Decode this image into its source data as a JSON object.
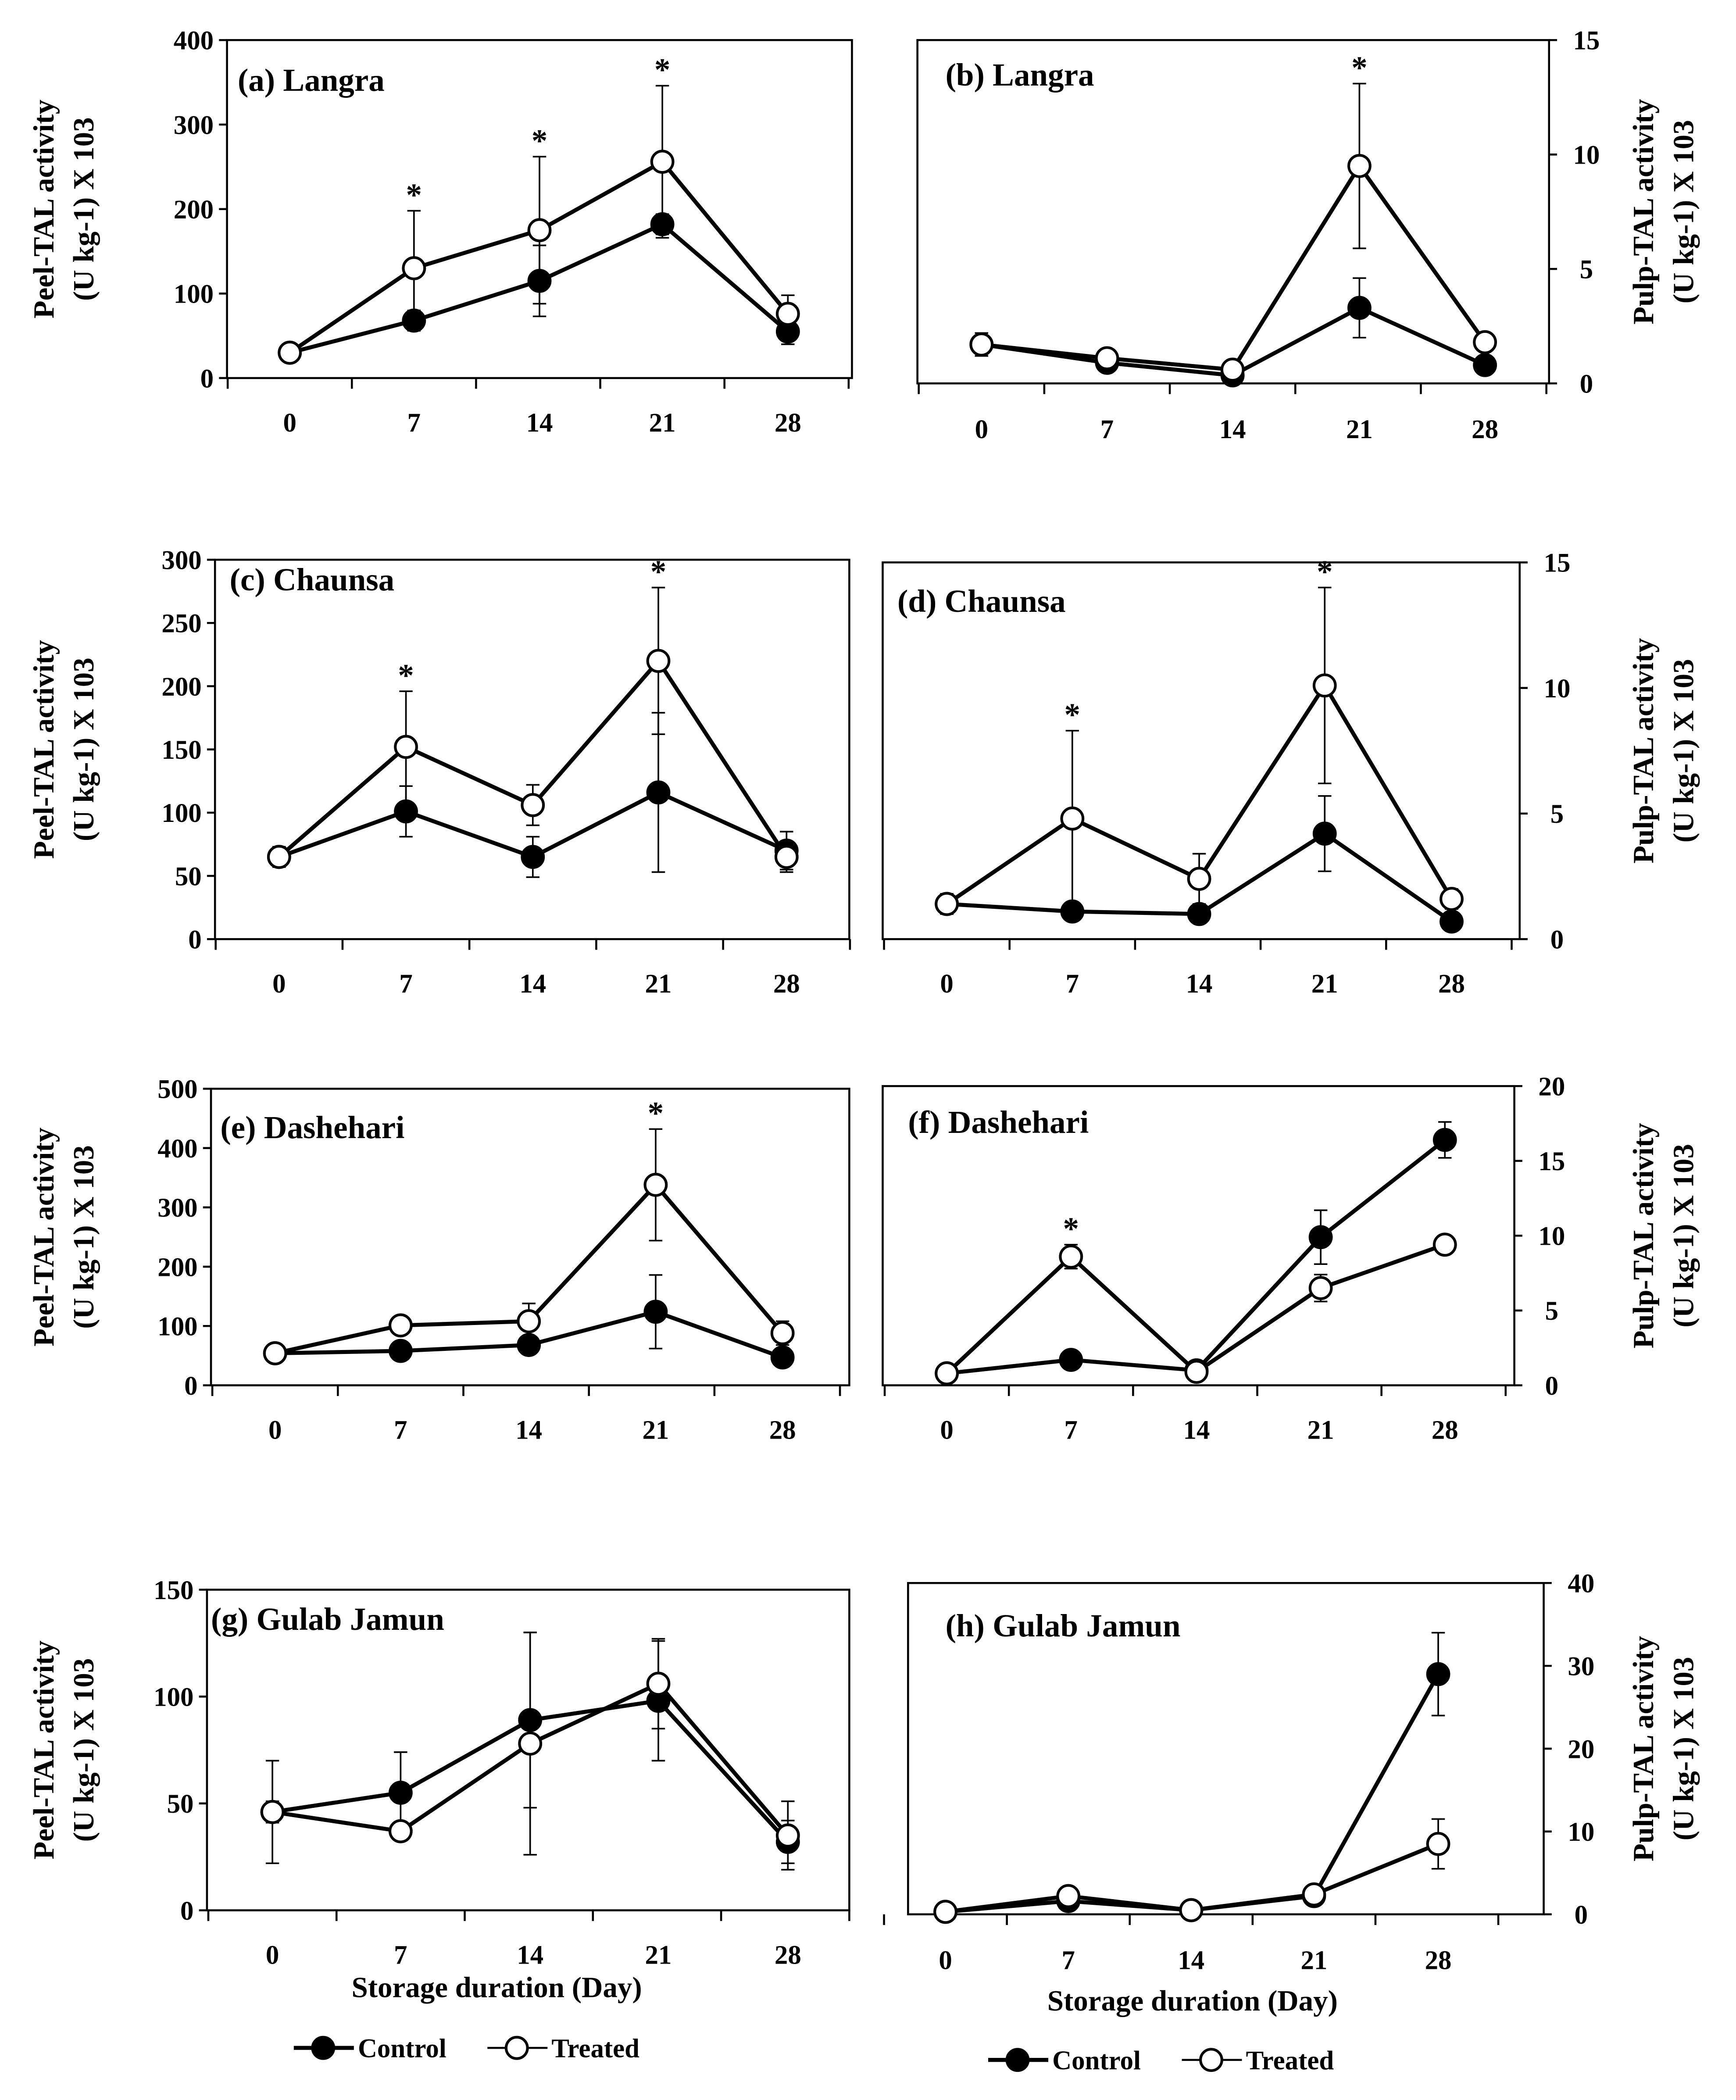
{
  "chart_data": [
    {
      "type": "line",
      "panel": "a",
      "title": "(a) Langra",
      "ylabel": "Peel-TAL activity",
      "ylabel2": "(U kg-1) X 103",
      "ylim": [
        0,
        400
      ],
      "yticks": [
        0,
        100,
        200,
        300,
        400
      ],
      "x": [
        0,
        7,
        14,
        21,
        28
      ],
      "xlabel": "",
      "series": [
        {
          "name": "Control",
          "values": [
            30,
            68,
            115,
            182,
            55
          ],
          "errors": [
            5,
            12,
            42,
            12,
            15
          ]
        },
        {
          "name": "Treated",
          "values": [
            30,
            130,
            175,
            256,
            76
          ],
          "errors": [
            5,
            68,
            87,
            90,
            22
          ]
        }
      ],
      "significant_days": [
        7,
        14,
        21
      ]
    },
    {
      "type": "line",
      "panel": "b",
      "title": "(b) Langra",
      "ylabel": "Pulp-TAL activity",
      "ylabel2": "(U kg-1) X 103",
      "ylim": [
        0,
        15
      ],
      "yticks": [
        0,
        5,
        10,
        15
      ],
      "x": [
        0,
        7,
        14,
        21,
        28
      ],
      "xlabel": "",
      "series": [
        {
          "name": "Control",
          "values": [
            1.7,
            0.9,
            0.35,
            3.3,
            0.8
          ],
          "errors": [
            0.3,
            0.2,
            0.1,
            1.3,
            0.2
          ]
        },
        {
          "name": "Treated",
          "values": [
            1.7,
            1.1,
            0.6,
            9.5,
            1.8
          ],
          "errors": [
            0.5,
            0.2,
            0.2,
            3.6,
            0.4
          ]
        }
      ],
      "significant_days": [
        21
      ]
    },
    {
      "type": "line",
      "panel": "c",
      "title": "(c) Chaunsa",
      "ylabel": "Peel-TAL activity",
      "ylabel2": "(U kg-1) X 103",
      "ylim": [
        0,
        300
      ],
      "yticks": [
        0,
        50,
        100,
        150,
        200,
        250,
        300
      ],
      "x": [
        0,
        7,
        14,
        21,
        28
      ],
      "xlabel": "",
      "series": [
        {
          "name": "Control",
          "values": [
            65,
            101,
            65,
            116,
            70
          ],
          "errors": [
            8,
            20,
            16,
            63,
            15
          ]
        },
        {
          "name": "Treated",
          "values": [
            65,
            152,
            106,
            220,
            65
          ],
          "errors": [
            8,
            44,
            16,
            58,
            12
          ]
        }
      ],
      "significant_days": [
        7,
        21
      ]
    },
    {
      "type": "line",
      "panel": "d",
      "title": "(d) Chaunsa",
      "ylabel": "Pulp-TAL activity",
      "ylabel2": "(U kg-1) X 103",
      "ylim": [
        0,
        15
      ],
      "yticks": [
        0,
        5,
        10,
        15
      ],
      "x": [
        0,
        7,
        14,
        21,
        28
      ],
      "xlabel": "",
      "series": [
        {
          "name": "Control",
          "values": [
            1.4,
            1.1,
            1.0,
            4.2,
            0.7
          ],
          "errors": [
            0.4,
            0.2,
            0.3,
            1.5,
            0.2
          ]
        },
        {
          "name": "Treated",
          "values": [
            1.4,
            4.8,
            2.4,
            10.1,
            1.6
          ],
          "errors": [
            0.4,
            3.5,
            1.0,
            3.9,
            0.4
          ]
        }
      ],
      "significant_days": [
        7,
        21
      ]
    },
    {
      "type": "line",
      "panel": "e",
      "title": "(e) Dashehari",
      "ylabel": "Peel-TAL activity",
      "ylabel2": "(U kg-1) X 103",
      "ylim": [
        0,
        500
      ],
      "yticks": [
        0,
        100,
        200,
        300,
        400,
        500
      ],
      "x": [
        0,
        7,
        14,
        21,
        28
      ],
      "xlabel": "",
      "series": [
        {
          "name": "Control",
          "values": [
            54,
            58,
            68,
            124,
            47
          ],
          "errors": [
            5,
            15,
            15,
            62,
            12
          ]
        },
        {
          "name": "Treated",
          "values": [
            54,
            101,
            108,
            338,
            88
          ],
          "errors": [
            5,
            10,
            30,
            94,
            20
          ]
        }
      ],
      "significant_days": [
        21
      ]
    },
    {
      "type": "line",
      "panel": "f",
      "title": "(f) Dashehari",
      "ylabel": "Pulp-TAL activity",
      "ylabel2": "(U kg-1) X 103",
      "ylim": [
        0,
        20
      ],
      "yticks": [
        0,
        5,
        10,
        15,
        20
      ],
      "x": [
        0,
        7,
        14,
        21,
        28
      ],
      "xlabel": "",
      "series": [
        {
          "name": "Control",
          "values": [
            0.8,
            1.7,
            1.0,
            9.9,
            16.4
          ],
          "errors": [
            0.2,
            0.4,
            0.3,
            1.8,
            1.2
          ]
        },
        {
          "name": "Treated",
          "values": [
            0.8,
            8.6,
            0.9,
            6.5,
            9.4
          ],
          "errors": [
            0.2,
            0.8,
            0.2,
            0.9,
            0.3
          ]
        }
      ],
      "significant_days": [
        7
      ]
    },
    {
      "type": "line",
      "panel": "g",
      "title": "(g) Gulab Jamun",
      "ylabel": "Peel-TAL activity",
      "ylabel2": "(U kg-1) X 103",
      "ylim": [
        0,
        150
      ],
      "yticks": [
        0,
        50,
        100,
        150
      ],
      "x": [
        0,
        7,
        14,
        21,
        28
      ],
      "xlabel": "Storage duration (Day)",
      "series": [
        {
          "name": "Control",
          "values": [
            46,
            55,
            89,
            98,
            32
          ],
          "errors": [
            5,
            19,
            41,
            28,
            10
          ]
        },
        {
          "name": "Treated",
          "values": [
            46,
            37,
            78,
            106,
            35
          ],
          "errors": [
            24,
            4,
            52,
            21,
            16
          ]
        }
      ],
      "significant_days": []
    },
    {
      "type": "line",
      "panel": "h",
      "title": "(h) Gulab Jamun",
      "ylabel": "Pulp-TAL activity",
      "ylabel2": "(U kg-1) X 103",
      "ylim": [
        0,
        40
      ],
      "yticks": [
        0,
        10,
        20,
        30,
        40
      ],
      "x": [
        0,
        7,
        14,
        21,
        28
      ],
      "xlabel": "Storage duration (Day)",
      "series": [
        {
          "name": "Control",
          "values": [
            0.3,
            1.6,
            0.5,
            2.2,
            29
          ],
          "errors": [
            0.1,
            0.4,
            0.2,
            0.4,
            5
          ]
        },
        {
          "name": "Treated",
          "values": [
            0.3,
            2.2,
            0.5,
            2.4,
            8.5
          ],
          "errors": [
            0.1,
            0.4,
            0.2,
            0.4,
            3
          ]
        }
      ],
      "significant_days": []
    }
  ],
  "legend": {
    "control": "Control",
    "treated": "Treated"
  },
  "significance_marker": "*",
  "colors": {
    "control": "#000000",
    "treated": "#ffffff",
    "line": "#000000"
  }
}
